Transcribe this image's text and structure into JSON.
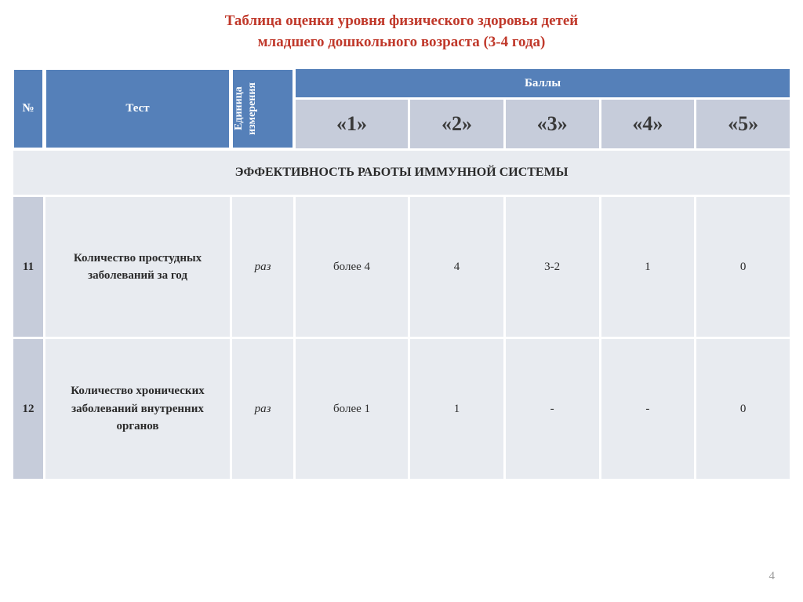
{
  "title_line1": "Таблица оценки уровня физического здоровья детей",
  "title_line2": "младшего дошкольного возраста (3-4 года)",
  "headers": {
    "num": "№",
    "test": "Тест",
    "unit_line1": "Единица",
    "unit_line2": "измерения",
    "scores_title": "Баллы",
    "scores": [
      "«1»",
      "«2»",
      "«3»",
      "«4»",
      "«5»"
    ]
  },
  "section_title": "ЭФФЕКТИВНОСТЬ РАБОТЫ ИММУННОЙ СИСТЕМЫ",
  "rows": [
    {
      "num": "11",
      "test": "Количество простудных заболеваний за год",
      "unit": "раз",
      "cells": [
        "более 4",
        "4",
        "3-2",
        "1",
        "0"
      ]
    },
    {
      "num": "12",
      "test": "Количество хронических заболеваний внутренних органов",
      "unit": "раз",
      "cells": [
        "более 1",
        "1",
        "-",
        "-",
        "0"
      ]
    }
  ],
  "page_number": "4",
  "colors": {
    "title": "#c0392b",
    "header_dark": "#5580b9",
    "header_light": "#c6ccda",
    "cell_bg": "#e8ebf0",
    "text_dark": "#2b2b2b"
  }
}
